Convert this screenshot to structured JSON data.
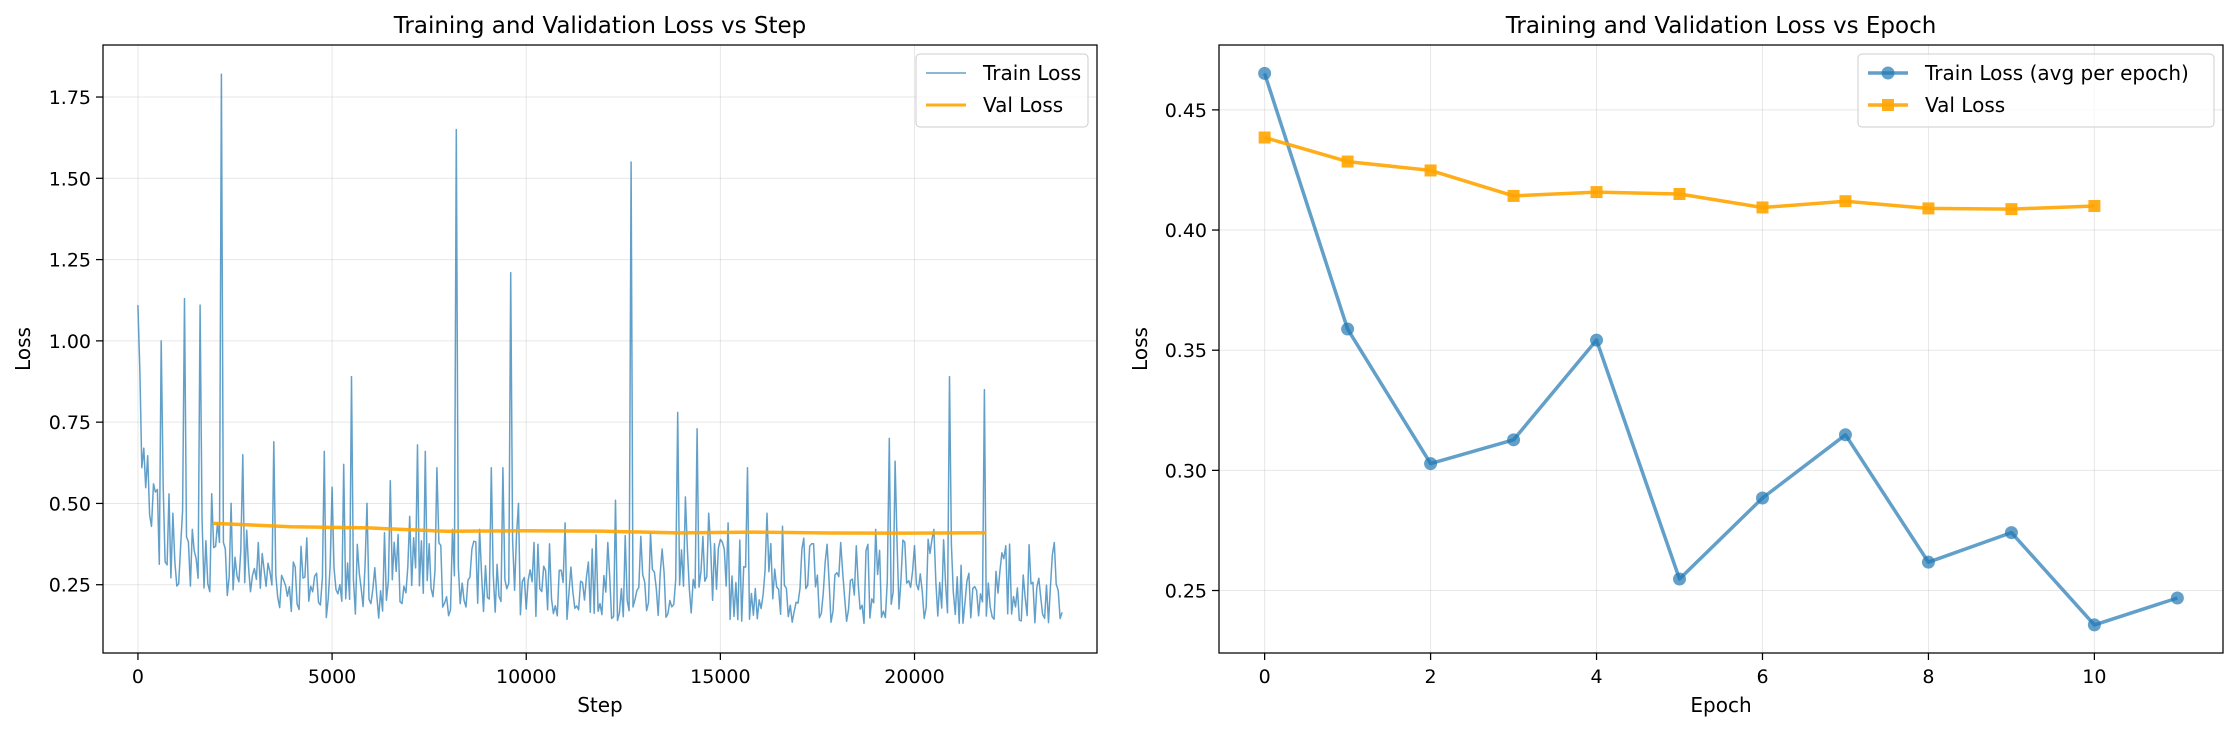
{
  "chart_data": [
    {
      "type": "line",
      "title": "Training and Validation Loss vs Step",
      "xlabel": "Step",
      "ylabel": "Loss",
      "xlim": [
        -900,
        24700
      ],
      "ylim": [
        0.04,
        1.91
      ],
      "xticks": [
        0,
        5000,
        10000,
        15000,
        20000
      ],
      "xtick_labels": [
        "0",
        "5000",
        "10000",
        "15000",
        "20000"
      ],
      "yticks": [
        0.25,
        0.5,
        0.75,
        1.0,
        1.25,
        1.5,
        1.75
      ],
      "ytick_labels": [
        "0.25",
        "0.50",
        "0.75",
        "1.00",
        "1.25",
        "1.50",
        "1.75"
      ],
      "grid": true,
      "legend_position": "top-right",
      "series": [
        {
          "name": "Train Loss",
          "color": "#1f77b4",
          "x_start": 50,
          "x_step": 50,
          "baseline": [
            [
              0,
              1.11
            ],
            [
              100,
              0.64
            ],
            [
              300,
              0.42
            ],
            [
              1000,
              0.33
            ],
            [
              2000,
              0.31
            ],
            [
              4000,
              0.24
            ],
            [
              8000,
              0.235
            ],
            [
              12000,
              0.23
            ],
            [
              16000,
              0.225
            ],
            [
              20000,
              0.215
            ],
            [
              23800,
              0.21
            ]
          ],
          "spikes": [
            [
              150,
              0.67
            ],
            [
              400,
              0.56
            ],
            [
              600,
              1.0
            ],
            [
              900,
              0.47
            ],
            [
              1200,
              1.13
            ],
            [
              1400,
              0.42
            ],
            [
              1600,
              1.11
            ],
            [
              1900,
              0.53
            ],
            [
              2150,
              1.82
            ],
            [
              2400,
              0.5
            ],
            [
              2700,
              0.65
            ],
            [
              3100,
              0.38
            ],
            [
              3500,
              0.69
            ],
            [
              4000,
              0.32
            ],
            [
              4800,
              0.66
            ],
            [
              5000,
              0.55
            ],
            [
              5300,
              0.62
            ],
            [
              5500,
              0.89
            ],
            [
              5900,
              0.5
            ],
            [
              6500,
              0.57
            ],
            [
              7000,
              0.46
            ],
            [
              7200,
              0.68
            ],
            [
              7400,
              0.66
            ],
            [
              7700,
              0.61
            ],
            [
              8100,
              0.42
            ],
            [
              8200,
              1.65
            ],
            [
              8600,
              0.36
            ],
            [
              8800,
              0.42
            ],
            [
              9100,
              0.61
            ],
            [
              9400,
              0.61
            ],
            [
              9600,
              1.21
            ],
            [
              9800,
              0.5
            ],
            [
              10200,
              0.38
            ],
            [
              11000,
              0.44
            ],
            [
              11600,
              0.32
            ],
            [
              12100,
              0.38
            ],
            [
              12300,
              0.51
            ],
            [
              12700,
              1.55
            ],
            [
              13200,
              0.41
            ],
            [
              13500,
              0.36
            ],
            [
              13900,
              0.78
            ],
            [
              14100,
              0.52
            ],
            [
              14400,
              0.73
            ],
            [
              14700,
              0.47
            ],
            [
              15200,
              0.44
            ],
            [
              15700,
              0.61
            ],
            [
              16200,
              0.47
            ],
            [
              16600,
              0.43
            ],
            [
              17100,
              0.36
            ],
            [
              17700,
              0.32
            ],
            [
              18100,
              0.38
            ],
            [
              18500,
              0.37
            ],
            [
              19000,
              0.42
            ],
            [
              19350,
              0.7
            ],
            [
              19500,
              0.63
            ],
            [
              20000,
              0.37
            ],
            [
              20500,
              0.42
            ],
            [
              20900,
              0.89
            ],
            [
              21200,
              0.31
            ],
            [
              21800,
              0.85
            ],
            [
              22300,
              0.33
            ],
            [
              22800,
              0.28
            ],
            [
              23200,
              0.27
            ],
            [
              23600,
              0.38
            ]
          ],
          "noise_seed": 7,
          "noise_amplitude": 0.2,
          "min_value": 0.12
        },
        {
          "name": "Val Loss",
          "color": "#ffa500",
          "x": [
            1950,
            3940,
            5930,
            7920,
            9910,
            11900,
            13890,
            15880,
            17870,
            19860,
            21850
          ],
          "values": [
            0.4385,
            0.4285,
            0.4248,
            0.4142,
            0.4158,
            0.415,
            0.4094,
            0.412,
            0.409,
            0.4087,
            0.41
          ]
        }
      ]
    },
    {
      "type": "line",
      "title": "Training and Validation Loss vs Epoch",
      "xlabel": "Epoch",
      "ylabel": "Loss",
      "xlim": [
        -0.55,
        11.55
      ],
      "ylim": [
        0.224,
        0.477
      ],
      "xticks": [
        0,
        2,
        4,
        6,
        8,
        10
      ],
      "xtick_labels": [
        "0",
        "2",
        "4",
        "6",
        "8",
        "10"
      ],
      "yticks": [
        0.25,
        0.3,
        0.35,
        0.4,
        0.45
      ],
      "ytick_labels": [
        "0.25",
        "0.30",
        "0.35",
        "0.40",
        "0.45"
      ],
      "grid": true,
      "legend_position": "top-right",
      "series": [
        {
          "name": "Train Loss (avg per epoch)",
          "color": "#1f77b4",
          "marker": "circle",
          "x": [
            0,
            1,
            2,
            3,
            4,
            5,
            6,
            7,
            8,
            9,
            10,
            11
          ],
          "values": [
            0.4652,
            0.3588,
            0.3028,
            0.3127,
            0.3542,
            0.2548,
            0.2885,
            0.3148,
            0.2618,
            0.2741,
            0.2357,
            0.2469
          ]
        },
        {
          "name": "Val Loss",
          "color": "#ffa500",
          "marker": "square",
          "x": [
            0,
            1,
            2,
            3,
            4,
            5,
            6,
            7,
            8,
            9,
            10
          ],
          "values": [
            0.4385,
            0.4285,
            0.4248,
            0.4142,
            0.4158,
            0.415,
            0.4094,
            0.412,
            0.409,
            0.4087,
            0.41
          ]
        }
      ]
    }
  ]
}
